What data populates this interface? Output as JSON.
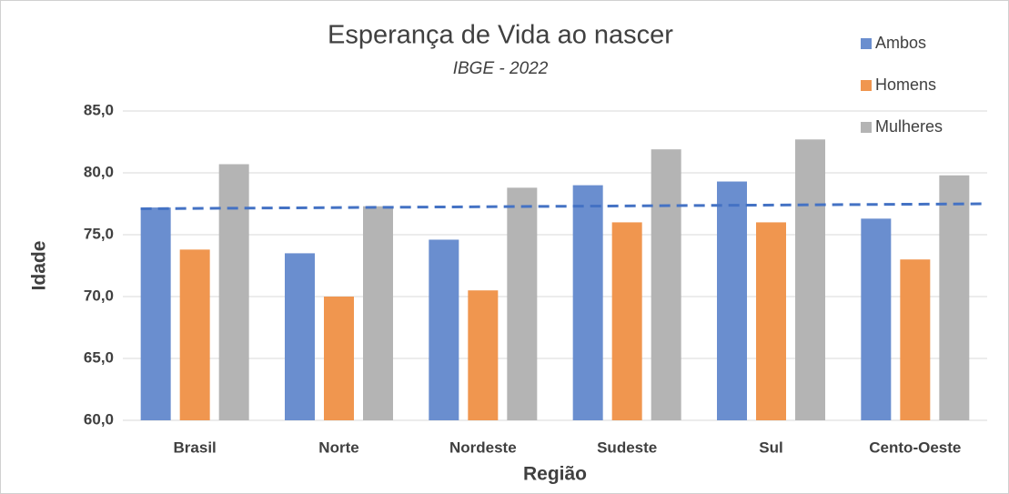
{
  "chart_data": {
    "type": "bar",
    "title": "Esperança de Vida ao nascer",
    "subtitle": "IBGE - 2022",
    "x_label": "Região",
    "y_label": "Idade",
    "categories": [
      "Brasil",
      "Norte",
      "Nordeste",
      "Sudeste",
      "Sul",
      "Cento-Oeste"
    ],
    "series": [
      {
        "name": "Ambos",
        "color": "#6a8ecf",
        "values": [
          77.2,
          73.5,
          74.6,
          79.0,
          79.3,
          76.3
        ]
      },
      {
        "name": "Homens",
        "color": "#f0964f",
        "values": [
          73.8,
          70.0,
          70.5,
          76.0,
          76.0,
          73.0
        ]
      },
      {
        "name": "Mulheres",
        "color": "#b4b4b4",
        "values": [
          80.7,
          77.3,
          78.8,
          81.9,
          82.7,
          79.8
        ]
      }
    ],
    "trendline": {
      "color": "#4472c4",
      "values": [
        77.1,
        77.5
      ]
    },
    "ylim": [
      60,
      85
    ],
    "yticks": [
      {
        "value": 60,
        "label": "60,0"
      },
      {
        "value": 65,
        "label": "65,0"
      },
      {
        "value": 70,
        "label": "70,0"
      },
      {
        "value": 75,
        "label": "75,0"
      },
      {
        "value": 80,
        "label": "80,0"
      },
      {
        "value": 85,
        "label": "85,0"
      }
    ],
    "grid": true,
    "legend": "top-right"
  }
}
